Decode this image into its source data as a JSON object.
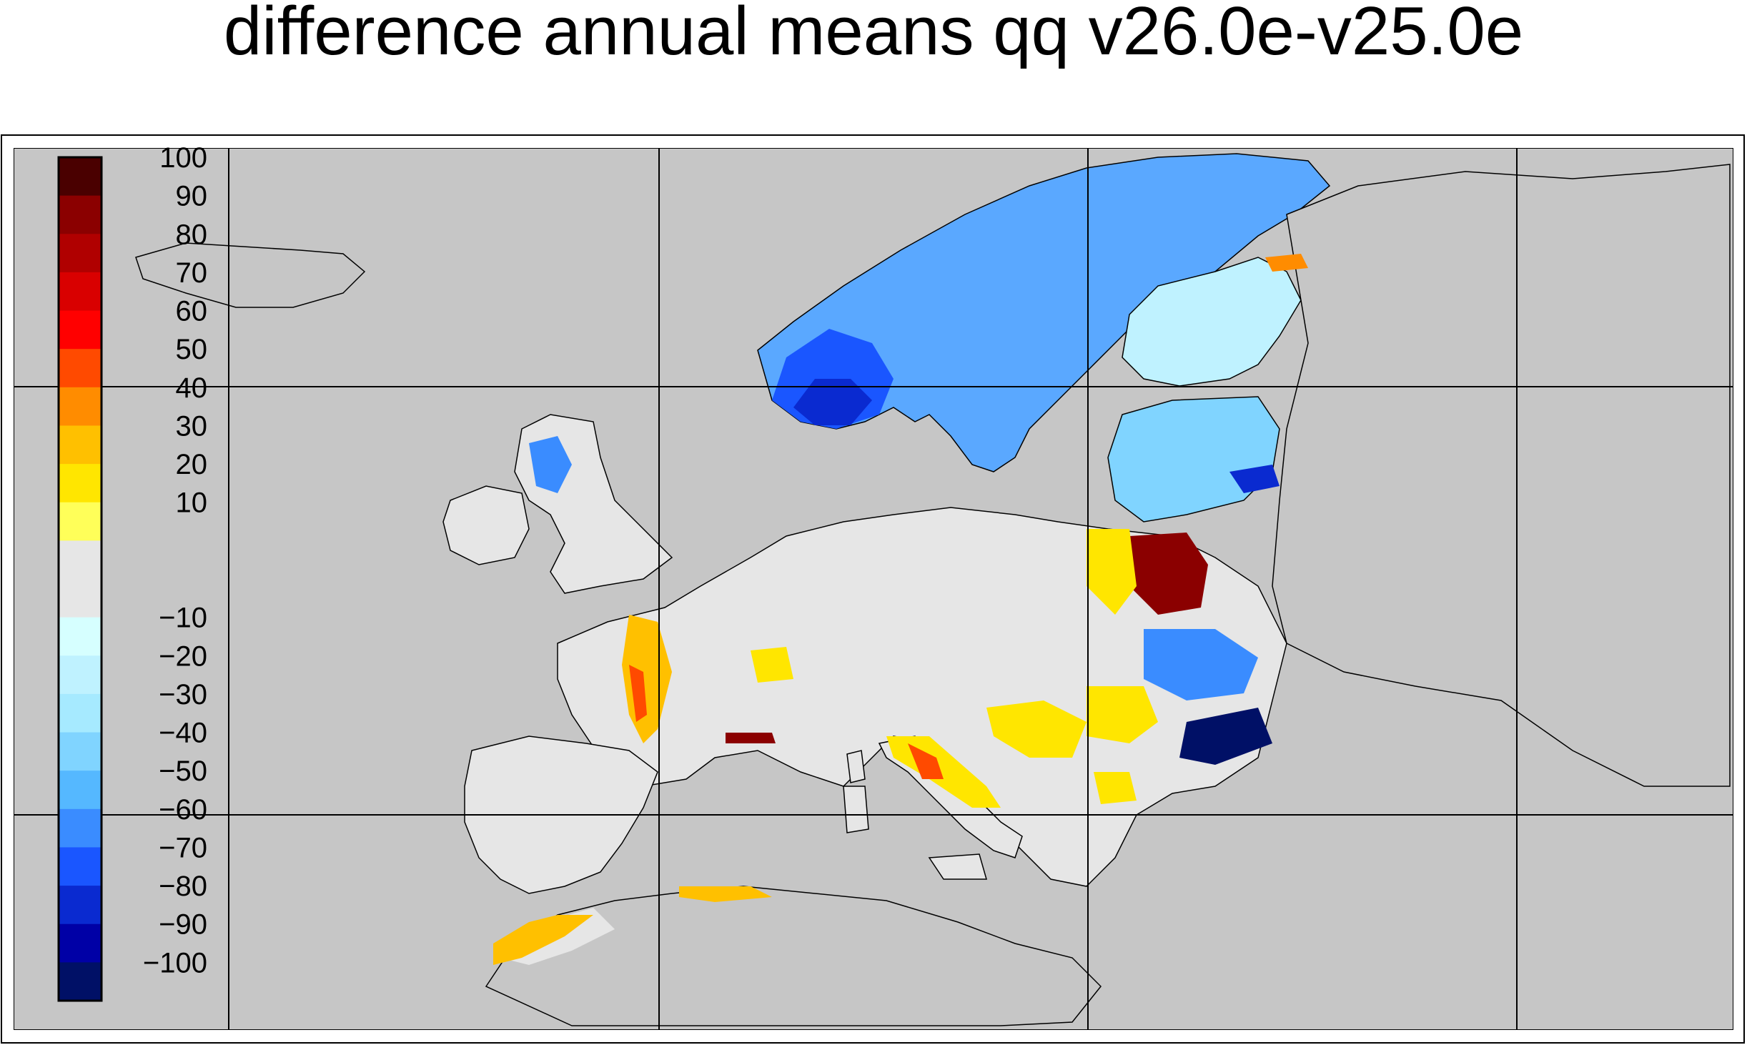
{
  "title": "difference annual means qq v26.0e-v25.0e",
  "map": {
    "background_color": "#c6c6c6",
    "coastline_color": "#000000",
    "grid_color": "#000000",
    "meridians": 4,
    "parallels": 2
  },
  "colorbar": {
    "tick_labels": [
      "100",
      "90",
      "80",
      "70",
      "60",
      "50",
      "40",
      "30",
      "20",
      "10",
      "-10",
      "-20",
      "-30",
      "-40",
      "-50",
      "-60",
      "-70",
      "-80",
      "-90",
      "-100"
    ],
    "colors": [
      "#4a0000",
      "#8b0000",
      "#b00000",
      "#d90000",
      "#ff0000",
      "#ff4a00",
      "#ff8c00",
      "#ffc000",
      "#ffe600",
      "#ffff59",
      "#e6e6e6",
      "#e6e6e6",
      "#d6ffff",
      "#bff2ff",
      "#a6eaff",
      "#80d4ff",
      "#55b8ff",
      "#3a8cff",
      "#1a56ff",
      "#0a2ad0",
      "#0000a6",
      "#001066"
    ]
  }
}
